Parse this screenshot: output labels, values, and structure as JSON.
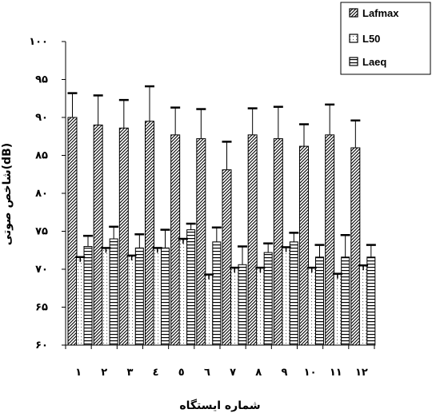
{
  "chart_data": {
    "type": "bar",
    "title": "",
    "xlabel": "شماره ایستگاه",
    "ylabel": "شاخص صوتی(dB)",
    "ylim": [
      60,
      100
    ],
    "yticks": [
      "۶۰",
      "۶۵",
      "۷۰",
      "۷۵",
      "۸۰",
      "۸۵",
      "۹۰",
      "۹۵",
      "۱۰۰"
    ],
    "categories": [
      "۱",
      "۲",
      "۳",
      "٤",
      "٥",
      "٦",
      "۷",
      "۸",
      "۹",
      "۱۰",
      "۱۱",
      "۱۲"
    ],
    "legend_position": "top-right",
    "series": [
      {
        "name": "Lafmax",
        "pattern": "diagonal-hatch",
        "values": [
          90.0,
          89.0,
          88.6,
          89.5,
          87.7,
          87.2,
          83.1,
          87.7,
          87.2,
          86.2,
          87.7,
          86.0
        ],
        "error": [
          3.2,
          3.9,
          3.7,
          4.6,
          3.6,
          3.9,
          3.7,
          3.5,
          4.2,
          2.9,
          4.0,
          3.6
        ]
      },
      {
        "name": "L50",
        "pattern": "dots",
        "values": [
          71.6,
          72.8,
          71.8,
          72.8,
          74.0,
          69.3,
          70.2,
          70.2,
          72.9,
          70.2,
          69.4,
          70.5
        ]
      },
      {
        "name": "Laeq",
        "pattern": "horizontal-lines",
        "values": [
          73.0,
          74.0,
          72.8,
          72.8,
          75.2,
          73.6,
          70.6,
          72.2,
          73.6,
          71.6,
          71.6,
          71.6
        ],
        "error": [
          1.4,
          1.6,
          1.8,
          2.4,
          0.8,
          1.9,
          2.4,
          1.2,
          1.2,
          1.6,
          2.9,
          1.6
        ]
      }
    ]
  }
}
